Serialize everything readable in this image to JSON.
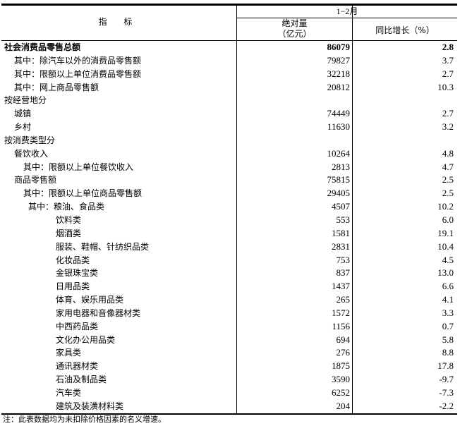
{
  "header": {
    "indicator": "指 标",
    "period": "1−2月",
    "absolute": "绝对量",
    "absolute_unit": "（亿元）",
    "yoy": "同比增长（%）"
  },
  "rows": [
    {
      "label": "社会消费品零售总额",
      "value": "86079",
      "yoy": "2.8",
      "level": 0,
      "bold": true
    },
    {
      "label": "其中：除汽车以外的消费品零售额",
      "value": "79827",
      "yoy": "3.7",
      "level": 1
    },
    {
      "label": "其中：限额以上单位消费品零售额",
      "value": "32218",
      "yoy": "2.7",
      "level": 1
    },
    {
      "label": "其中：网上商品零售额",
      "value": "20812",
      "yoy": "10.3",
      "level": 1
    },
    {
      "label": "按经营地分",
      "value": "",
      "yoy": "",
      "level": 0
    },
    {
      "label": "城镇",
      "value": "74449",
      "yoy": "2.7",
      "level": 1
    },
    {
      "label": "乡村",
      "value": "11630",
      "yoy": "3.2",
      "level": 1
    },
    {
      "label": "按消费类型分",
      "value": "",
      "yoy": "",
      "level": 0
    },
    {
      "label": "餐饮收入",
      "value": "10264",
      "yoy": "4.8",
      "level": 1
    },
    {
      "label": "其中：限额以上单位餐饮收入",
      "value": "2813",
      "yoy": "4.7",
      "level": 2
    },
    {
      "label": "商品零售额",
      "value": "75815",
      "yoy": "2.5",
      "level": 1
    },
    {
      "label": "其中：限额以上单位商品零售额",
      "value": "29405",
      "yoy": "2.5",
      "level": 2
    },
    {
      "label": "其中：粮油、食品类",
      "value": "4507",
      "yoy": "10.2",
      "level": 3
    },
    {
      "label": "饮料类",
      "value": "553",
      "yoy": "6.0",
      "level": 4
    },
    {
      "label": "烟酒类",
      "value": "1581",
      "yoy": "19.1",
      "level": 4
    },
    {
      "label": "服装、鞋帽、针纺织品类",
      "value": "2831",
      "yoy": "10.4",
      "level": 4
    },
    {
      "label": "化妆品类",
      "value": "753",
      "yoy": "4.5",
      "level": 4
    },
    {
      "label": "金银珠宝类",
      "value": "837",
      "yoy": "13.0",
      "level": 4
    },
    {
      "label": "日用品类",
      "value": "1437",
      "yoy": "6.6",
      "level": 4
    },
    {
      "label": "体育、娱乐用品类",
      "value": "265",
      "yoy": "4.1",
      "level": 4
    },
    {
      "label": "家用电器和音像器材类",
      "value": "1572",
      "yoy": "3.3",
      "level": 4
    },
    {
      "label": "中西药品类",
      "value": "1156",
      "yoy": "0.7",
      "level": 4
    },
    {
      "label": "文化办公用品类",
      "value": "694",
      "yoy": "5.8",
      "level": 4
    },
    {
      "label": "家具类",
      "value": "276",
      "yoy": "8.8",
      "level": 4
    },
    {
      "label": "通讯器材类",
      "value": "1875",
      "yoy": "17.8",
      "level": 4
    },
    {
      "label": "石油及制品类",
      "value": "3590",
      "yoy": "-9.7",
      "level": 4
    },
    {
      "label": "汽车类",
      "value": "6252",
      "yoy": "-7.3",
      "level": 4
    },
    {
      "label": "建筑及装潢材料类",
      "value": "204",
      "yoy": "-2.2",
      "level": 4
    }
  ],
  "note": "注：此表数据均为未扣除价格因素的名义增速。"
}
